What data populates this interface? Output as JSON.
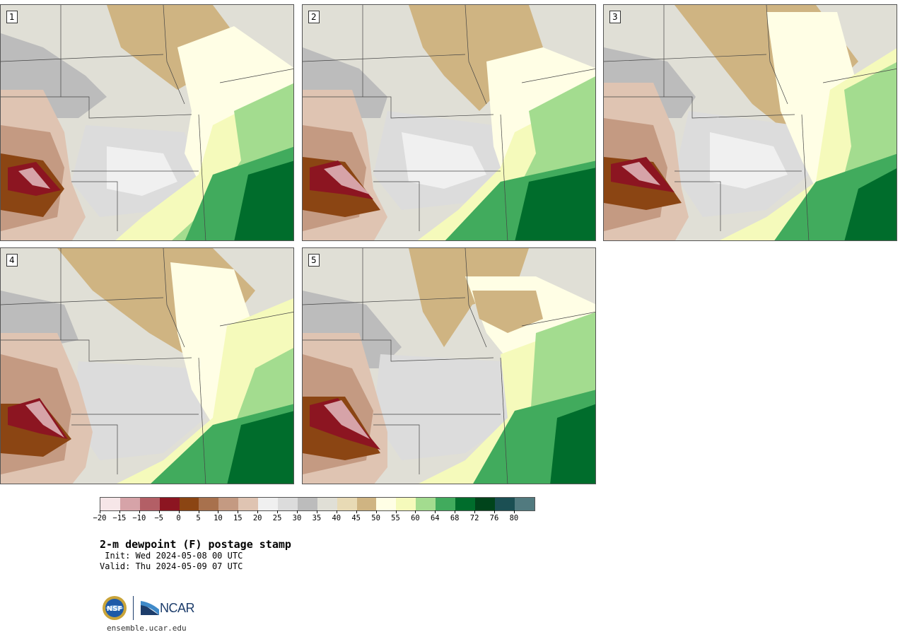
{
  "panels": [
    {
      "label": "1"
    },
    {
      "label": "2"
    },
    {
      "label": "3"
    },
    {
      "label": "4"
    },
    {
      "label": "5"
    }
  ],
  "colorbar": {
    "colors": [
      "#f6e6e8",
      "#d6a3a8",
      "#b35f66",
      "#8c1521",
      "#8b4513",
      "#a8714d",
      "#c49a82",
      "#dfc4b2",
      "#f0f0f0",
      "#dcdcdc",
      "#bcbcbc",
      "#e0dfd6",
      "#e8dab5",
      "#cfb482",
      "#fffee5",
      "#f5fabb",
      "#a3dc8f",
      "#41ab5d",
      "#006d2c",
      "#00441b",
      "#1b4f53",
      "#517a7f"
    ],
    "tick_labels": [
      "−20",
      "−15",
      "−10",
      "−5",
      "0",
      "5",
      "10",
      "15",
      "20",
      "25",
      "30",
      "35",
      "40",
      "45",
      "50",
      "55",
      "60",
      "64",
      "68",
      "72",
      "76",
      "80"
    ]
  },
  "title": "2-m dewpoint (F) postage stamp",
  "init": " Init: Wed 2024-05-08 00 UTC",
  "valid": "Valid: Thu 2024-05-09 07 UTC",
  "logo": {
    "agency_text": "NCAR",
    "nsf_text": "NSF"
  },
  "url": "ensemble.ucar.edu"
}
